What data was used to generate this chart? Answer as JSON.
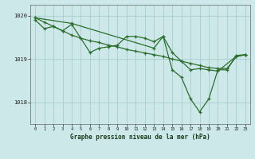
{
  "background_color": "#cce8e8",
  "grid_color": "#aacccc",
  "line_color": "#2d6e2d",
  "title": "Graphe pression niveau de la mer (hPa)",
  "xlabel_hours": [
    0,
    1,
    2,
    3,
    4,
    5,
    6,
    7,
    8,
    9,
    10,
    11,
    12,
    13,
    14,
    15,
    16,
    17,
    18,
    19,
    20,
    21,
    22,
    23
  ],
  "ylim": [
    1017.5,
    1020.25
  ],
  "yticks": [
    1018,
    1019,
    1020
  ],
  "line_a_x": [
    0,
    1,
    2,
    3,
    4,
    5,
    6,
    7,
    8,
    9,
    10,
    11,
    12,
    13,
    14,
    15,
    16,
    17,
    18,
    19,
    20,
    21,
    22,
    23
  ],
  "line_a_y": [
    1019.95,
    1019.85,
    1019.75,
    1019.65,
    1019.55,
    1019.48,
    1019.42,
    1019.38,
    1019.32,
    1019.28,
    1019.22,
    1019.18,
    1019.14,
    1019.1,
    1019.06,
    1019.0,
    1018.95,
    1018.9,
    1018.85,
    1018.8,
    1018.78,
    1018.78,
    1019.05,
    1019.1
  ],
  "line_b_x": [
    0,
    1,
    2,
    3,
    4,
    6,
    7,
    8,
    9,
    10,
    11,
    12,
    13,
    14,
    15,
    16,
    17,
    18,
    19,
    20,
    22,
    23
  ],
  "line_b_y": [
    1019.9,
    1019.7,
    1019.75,
    1019.65,
    1019.8,
    1019.15,
    1019.25,
    1019.28,
    1019.32,
    1019.52,
    1019.52,
    1019.48,
    1019.4,
    1019.52,
    1019.15,
    1018.95,
    1018.75,
    1018.78,
    1018.75,
    1018.72,
    1019.06,
    1019.1
  ],
  "line_c_x": [
    0,
    4,
    13,
    14,
    15,
    16,
    17,
    18,
    19,
    20,
    21,
    22,
    23
  ],
  "line_c_y": [
    1019.95,
    1019.82,
    1019.25,
    1019.52,
    1018.75,
    1018.58,
    1018.08,
    1017.78,
    1018.08,
    1018.75,
    1018.75,
    1019.08,
    1019.1
  ]
}
